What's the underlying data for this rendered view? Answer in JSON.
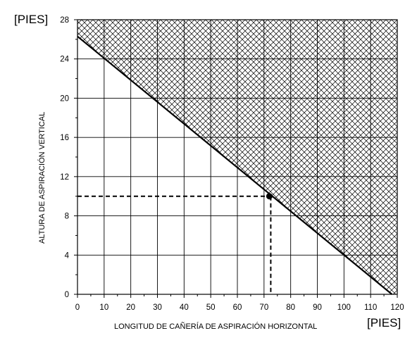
{
  "units": {
    "y": "[PIES]",
    "x": "[PIES]"
  },
  "chart_data": {
    "type": "line",
    "title": "",
    "xlabel": "LONGITUD DE CAÑERÍA DE ASPIRACIÓN HORIZONTAL",
    "ylabel": "ALTURA DE ASPIRACIÓN VERTICAL",
    "xlim": [
      0,
      120
    ],
    "ylim": [
      0,
      28
    ],
    "x_ticks": [
      0,
      10,
      20,
      30,
      40,
      50,
      60,
      70,
      80,
      90,
      100,
      110,
      120
    ],
    "y_ticks": [
      0,
      4,
      8,
      12,
      16,
      20,
      24,
      28
    ],
    "grid": true,
    "limit_line": {
      "x": [
        0,
        118
      ],
      "y": [
        26.3,
        0
      ]
    },
    "hatched_region": "above limit line",
    "example_point": {
      "x": 72,
      "y": 10
    },
    "colors": {
      "line": "#000000",
      "hatch": "#000000",
      "background": "#ffffff"
    }
  }
}
